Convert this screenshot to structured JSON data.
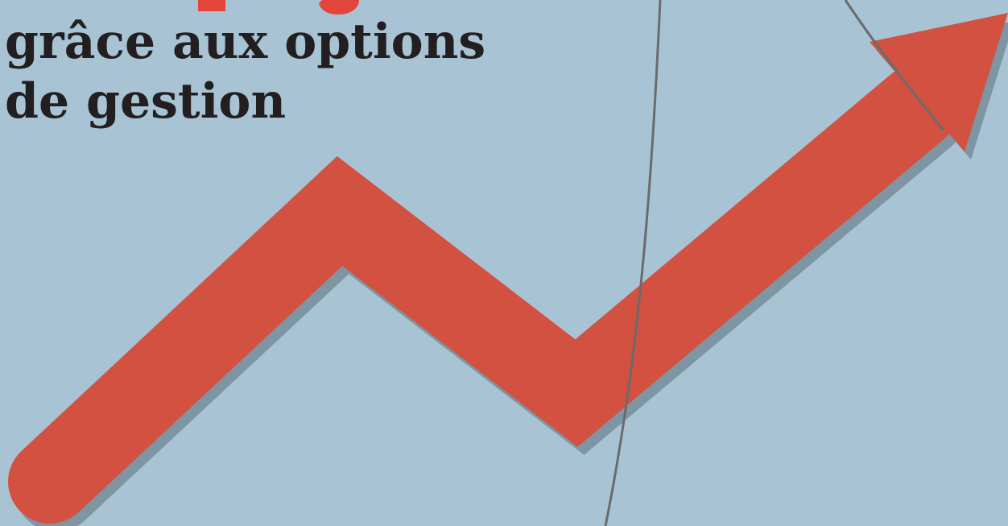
{
  "headline": {
    "lines": [
      "grâce aux options",
      "de gestion"
    ]
  }
}
